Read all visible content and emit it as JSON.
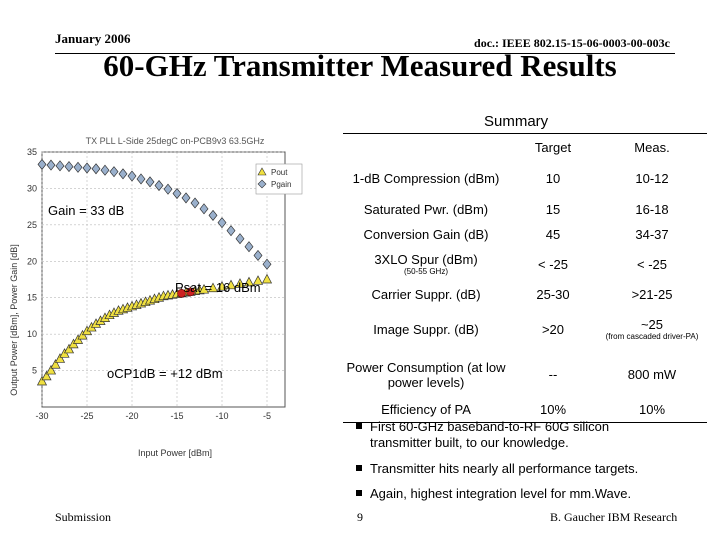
{
  "header": {
    "date": "January 2006",
    "doc": "doc.: IEEE 802.15-15-06-0003-00-003c"
  },
  "title": "60-GHz Transmitter Measured Results",
  "summary": {
    "label": "Summary",
    "columns": [
      "Target",
      "Meas."
    ],
    "rows": [
      {
        "param": "1-dB Compression (dBm)",
        "target": "10",
        "meas": "10-12",
        "note": ""
      },
      {
        "param": "Saturated Pwr. (dBm)",
        "target": "15",
        "meas": "16-18",
        "note": ""
      },
      {
        "param": "Conversion Gain (dB)",
        "target": "45",
        "meas": "34-37",
        "note": ""
      },
      {
        "param": "3XLO Spur (dBm)",
        "param_note": "(50-55 GHz)",
        "target": "< -25",
        "meas": "< -25",
        "note": ""
      },
      {
        "param": "Carrier Suppr. (dB)",
        "target": "25-30",
        "meas": ">21-25",
        "note": ""
      },
      {
        "param": "Image Suppr. (dB)",
        "target": ">20",
        "meas": "~25",
        "note": "(from cascaded driver-PA)"
      },
      {
        "param": "Power Consumption (at low power levels)",
        "target": "--",
        "meas": "800 mW",
        "note": ""
      },
      {
        "param": "Efficiency of PA",
        "target": "10%",
        "meas": "10%",
        "note": ""
      }
    ]
  },
  "bullets": [
    "First 60-GHz baseband-to-RF 60G silicon transmitter built, to our knowledge.",
    "Transmitter hits nearly all performance targets.",
    "Again, highest integration level for mm.Wave."
  ],
  "footer": {
    "left": "Submission",
    "page": "9",
    "right": "B. Gaucher IBM Research"
  },
  "colors": {
    "pout": "#f0e040",
    "pgain": "#9ab0cc",
    "marker": "#cc2222"
  },
  "chart_data": {
    "type": "scatter",
    "title": "TX PLL L-Side 25degC on-PCB9v3 63.5GHz",
    "xlabel": "Input Power [dBm]",
    "ylabel": "Output Power [dBm], Power Gain [dB]",
    "xlim": [
      -30,
      -3
    ],
    "ylim": [
      0,
      35
    ],
    "xticks": [
      -30,
      -25,
      -20,
      -15,
      -10,
      -5
    ],
    "yticks": [
      5,
      10,
      15,
      20,
      25,
      30,
      35
    ],
    "legend": [
      "Pout",
      "Pgain"
    ],
    "annotations": [
      "Gain = 33 dB",
      "Psat = 16 dBm",
      "oCP1dB = +12 dBm"
    ],
    "series": [
      {
        "name": "Pout",
        "x": [
          -30,
          -29.5,
          -29,
          -28.5,
          -28,
          -27.5,
          -27,
          -26.5,
          -26,
          -25.5,
          -25,
          -24.5,
          -24,
          -23.5,
          -23,
          -22.5,
          -22,
          -21.5,
          -21,
          -20.5,
          -20,
          -19.5,
          -19,
          -18.5,
          -18,
          -17.5,
          -17,
          -16.5,
          -16,
          -15.5,
          -15,
          -14.5,
          -14,
          -13.5,
          -13,
          -12.5,
          -12,
          -11,
          -10,
          -9,
          -8,
          -7,
          -6,
          -5
        ],
        "y": [
          3.5,
          4.2,
          5,
          5.8,
          6.6,
          7.3,
          7.9,
          8.6,
          9.2,
          9.8,
          10.4,
          10.9,
          11.4,
          11.8,
          12.2,
          12.6,
          12.9,
          13.2,
          13.4,
          13.6,
          13.8,
          14.0,
          14.2,
          14.4,
          14.6,
          14.8,
          15.0,
          15.2,
          15.3,
          15.4,
          15.5,
          15.6,
          15.7,
          15.8,
          15.9,
          16.0,
          16.1,
          16.3,
          16.5,
          16.7,
          16.9,
          17.1,
          17.3,
          17.5
        ]
      },
      {
        "name": "Pgain",
        "x": [
          -30,
          -29,
          -28,
          -27,
          -26,
          -25,
          -24,
          -23,
          -22,
          -21,
          -20,
          -19,
          -18,
          -17,
          -16,
          -15,
          -14,
          -13,
          -12,
          -11,
          -10,
          -9,
          -8,
          -7,
          -6,
          -5
        ],
        "y": [
          33.3,
          33.2,
          33.1,
          33.0,
          32.9,
          32.8,
          32.7,
          32.5,
          32.3,
          32.0,
          31.7,
          31.3,
          30.9,
          30.4,
          29.9,
          29.3,
          28.7,
          28.0,
          27.2,
          26.3,
          25.3,
          24.2,
          23.1,
          22.0,
          20.8,
          19.6
        ]
      }
    ]
  }
}
